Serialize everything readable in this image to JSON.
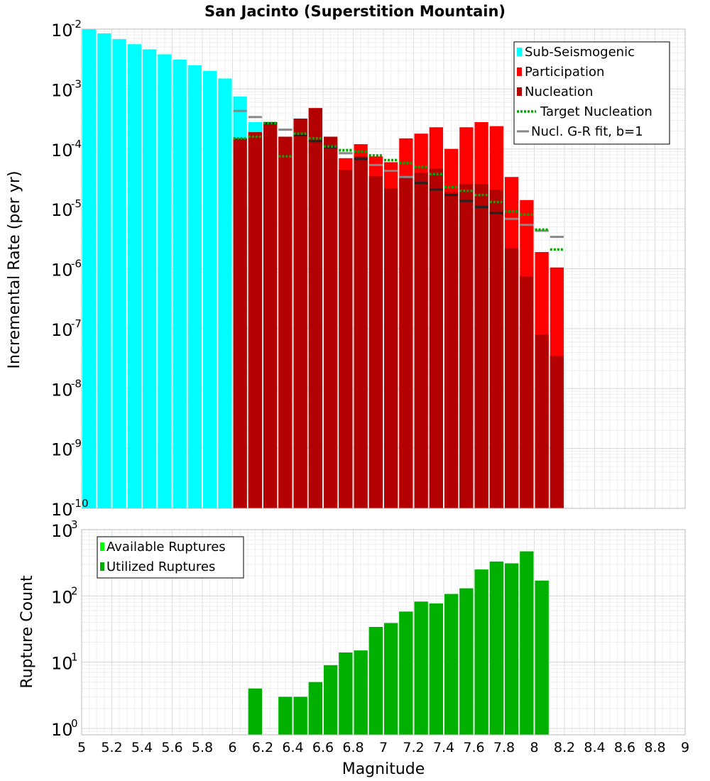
{
  "chart_data": [
    {
      "type": "bar",
      "title": "San Jacinto (Superstition Mountain)",
      "xlabel": "Magnitude",
      "ylabel": "Incremental Rate (per yr)",
      "yscale": "log",
      "xlim": [
        5,
        9
      ],
      "ylim": [
        1e-10,
        0.01
      ],
      "x_ticks": [
        "5",
        "5.2",
        "5.4",
        "5.6",
        "5.8",
        "6",
        "6.2",
        "6.4",
        "6.6",
        "6.8",
        "7",
        "7.2",
        "7.4",
        "7.6",
        "7.8",
        "8",
        "8.2",
        "8.4",
        "8.6",
        "8.8",
        "9"
      ],
      "y_ticks": [
        {
          "base": "10",
          "exp": "-2"
        },
        {
          "base": "10",
          "exp": "-3"
        },
        {
          "base": "10",
          "exp": "-4"
        },
        {
          "base": "10",
          "exp": "-5"
        },
        {
          "base": "10",
          "exp": "-6"
        },
        {
          "base": "10",
          "exp": "-7"
        },
        {
          "base": "10",
          "exp": "-8"
        },
        {
          "base": "10",
          "exp": "-9"
        },
        {
          "base": "10",
          "exp": "-10"
        }
      ],
      "legend_position": "top-right",
      "bar_width": 0.1,
      "series": [
        {
          "name": "Sub-Seismogenic",
          "style": "bar",
          "color": "#00ffff",
          "x": [
            5.05,
            5.15,
            5.25,
            5.35,
            5.45,
            5.55,
            5.65,
            5.75,
            5.85,
            5.95,
            6.05,
            6.15
          ],
          "values": [
            0.01,
            0.0085,
            0.0068,
            0.0056,
            0.0046,
            0.0038,
            0.0031,
            0.0025,
            0.002,
            0.0015,
            0.00075,
            0.00028
          ]
        },
        {
          "name": "Participation",
          "style": "bar",
          "color": "#ff0000",
          "x": [
            6.05,
            6.15,
            6.25,
            6.35,
            6.45,
            6.55,
            6.65,
            6.75,
            6.85,
            6.95,
            7.05,
            7.15,
            7.25,
            7.35,
            7.45,
            7.55,
            7.65,
            7.75,
            7.85,
            7.95,
            8.05,
            8.15
          ],
          "values": [
            0.00015,
            0.00019,
            0.00028,
            0.00016,
            0.00032,
            0.00048,
            0.00016,
            7e-05,
            0.00012,
            7.5e-05,
            6e-05,
            0.00015,
            0.00018,
            0.00023,
            0.0001,
            0.00023,
            0.00028,
            0.00024,
            3.4e-05,
            1.4e-05,
            1.9e-06,
            1.05e-06
          ]
        },
        {
          "name": "Nucleation",
          "style": "bar",
          "color": "#b30000",
          "x": [
            6.05,
            6.15,
            6.25,
            6.35,
            6.45,
            6.55,
            6.65,
            6.75,
            6.85,
            6.95,
            7.05,
            7.15,
            7.25,
            7.35,
            7.45,
            7.55,
            7.65,
            7.75,
            7.85,
            7.95,
            8.05,
            8.15
          ],
          "values": [
            0.00015,
            0.00019,
            0.00028,
            0.00016,
            0.00032,
            0.00048,
            0.00016,
            4.5e-05,
            7.5e-05,
            3.5e-05,
            2.2e-05,
            3.3e-05,
            4e-05,
            4.7e-05,
            1.9e-05,
            2.6e-05,
            2.6e-05,
            2.1e-05,
            2.2e-06,
            7.5e-07,
            8e-08,
            3.5e-08
          ]
        },
        {
          "name": "Target Nucleation",
          "style": "dotted",
          "color": "#00aa00",
          "x": [
            6.05,
            6.15,
            6.25,
            6.35,
            6.45,
            6.55,
            6.65,
            6.75,
            6.85,
            6.95,
            7.05,
            7.15,
            7.25,
            7.35,
            7.45,
            7.55,
            7.65,
            7.75,
            7.85,
            7.95,
            8.05,
            8.15
          ],
          "values": [
            0.00015,
            0.00016,
            0.00027,
            7.5e-05,
            0.00018,
            0.00015,
            0.00011,
            9.5e-05,
            9e-05,
            7.8e-05,
            6.5e-05,
            5.8e-05,
            5e-05,
            3.8e-05,
            2.3e-05,
            2e-05,
            1.7e-05,
            1.3e-05,
            9e-06,
            8e-06,
            4.5e-06,
            2.1e-06
          ]
        },
        {
          "name": "Nucl. G-R fit, b=1",
          "style": "segment",
          "color": "#888888",
          "x": [
            6.05,
            6.15,
            6.25,
            6.35,
            6.45,
            6.55,
            6.65,
            6.75,
            6.85,
            6.95,
            7.05,
            7.15,
            7.25,
            7.35,
            7.45,
            7.55,
            7.65,
            7.75,
            7.85,
            7.95,
            8.05,
            8.15
          ],
          "values": [
            0.00043,
            0.00034,
            0.00027,
            0.00021,
            0.00017,
            0.000135,
            0.000107,
            8.5e-05,
            6.8e-05,
            5.4e-05,
            4.3e-05,
            3.4e-05,
            2.7e-05,
            2.1e-05,
            1.7e-05,
            1.35e-05,
            1.07e-05,
            8.5e-06,
            6.8e-06,
            5.4e-06,
            4.3e-06,
            3.4e-06
          ]
        }
      ]
    },
    {
      "type": "bar",
      "title": "",
      "xlabel": "Magnitude",
      "ylabel": "Rupture Count",
      "yscale": "log",
      "xlim": [
        5,
        9
      ],
      "ylim": [
        0.8,
        1000
      ],
      "y_ticks": [
        {
          "base": "10",
          "exp": "3"
        },
        {
          "base": "10",
          "exp": "2"
        },
        {
          "base": "10",
          "exp": "1"
        },
        {
          "base": "10",
          "exp": "0"
        }
      ],
      "legend_position": "top-left",
      "bar_width": 0.1,
      "series": [
        {
          "name": "Available Ruptures",
          "style": "bar",
          "color": "#00ff00",
          "x": [
            6.15,
            6.35,
            6.45,
            6.55,
            6.65,
            6.75,
            6.85,
            6.95,
            7.05,
            7.15,
            7.25,
            7.35,
            7.45,
            7.55,
            7.65,
            7.75,
            7.85,
            7.95,
            8.05
          ],
          "values": [
            4,
            3,
            3,
            5,
            9,
            14,
            15,
            34,
            39,
            58,
            82,
            77,
            107,
            130,
            250,
            330,
            310,
            470,
            170
          ]
        },
        {
          "name": "Utilized Ruptures",
          "style": "bar",
          "color": "#00b000",
          "x": [
            6.15,
            6.35,
            6.45,
            6.55,
            6.65,
            6.75,
            6.85,
            6.95,
            7.05,
            7.15,
            7.25,
            7.35,
            7.45,
            7.55,
            7.65,
            7.75,
            7.85,
            7.95,
            8.05
          ],
          "values": [
            4,
            3,
            3,
            5,
            9,
            14,
            15,
            34,
            39,
            58,
            82,
            77,
            107,
            130,
            250,
            330,
            310,
            470,
            170
          ]
        }
      ]
    }
  ]
}
